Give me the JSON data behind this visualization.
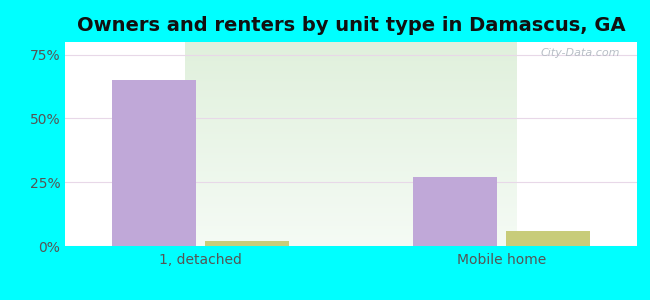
{
  "title": "Owners and renters by unit type in Damascus, GA",
  "categories": [
    "1, detached",
    "Mobile home"
  ],
  "owner_values": [
    65.0,
    27.0
  ],
  "renter_values": [
    2.0,
    6.0
  ],
  "owner_color": "#c0a8d8",
  "renter_color": "#c8cc7a",
  "ylim": [
    0,
    80
  ],
  "yticks": [
    0,
    25,
    50,
    75
  ],
  "yticklabels": [
    "0%",
    "25%",
    "50%",
    "75%"
  ],
  "background_color": "#00ffff",
  "plot_bg_color": "#e8f5e6",
  "bar_width": 0.28,
  "group_positions": [
    0.22,
    0.72
  ],
  "title_fontsize": 14,
  "tick_fontsize": 10,
  "legend_fontsize": 10,
  "watermark": "City-Data.com"
}
